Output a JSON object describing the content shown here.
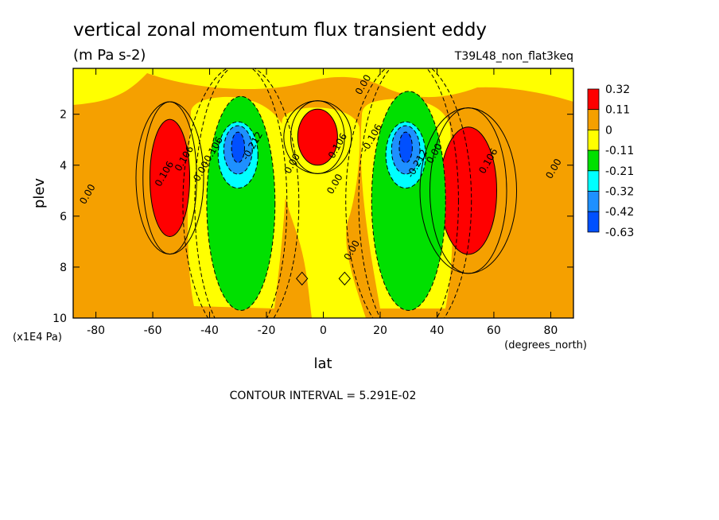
{
  "chart_data": {
    "type": "heatmap",
    "title": "vertical zonal momentum flux transient eddy",
    "units": "(m Pa s-2)",
    "dataset": "T39L48_non_flat3keq",
    "xlabel": "lat",
    "x_units": "(degrees_north)",
    "ylabel": "plev",
    "y_units": "(x1E4 Pa)",
    "x_ticks": [
      "-80",
      "-60",
      "-40",
      "-20",
      "0",
      "20",
      "40",
      "60",
      "80"
    ],
    "y_ticks": [
      "2",
      "4",
      "6",
      "8",
      "10"
    ],
    "xlim": [
      -88,
      88
    ],
    "ylim": [
      10,
      0.2
    ],
    "footer": "CONTOUR INTERVAL = 5.291E-02",
    "legend": {
      "placement": "right",
      "labels": [
        "0.32",
        "0.11",
        "0",
        "-0.11",
        "-0.21",
        "-0.32",
        "-0.42",
        "-0.63"
      ],
      "colors": [
        "#ff0000",
        "#f5a000",
        "#ffff00",
        "#00e000",
        "#00ffff",
        "#1e90ff",
        "#0050ff"
      ]
    },
    "colors": {
      "red": "#ff0000",
      "orange": "#f5a000",
      "yellow": "#ffff00",
      "green": "#00e000",
      "cyan": "#00ffff",
      "midblue": "#1e90ff",
      "blue": "#0050ff"
    },
    "features": [
      {
        "kind": "max",
        "fill": "red",
        "lat": -54,
        "plev": 4.5,
        "w": 7,
        "h": 2.3
      },
      {
        "kind": "max",
        "fill": "red",
        "lat": -2,
        "plev": 2.9,
        "w": 7,
        "h": 1.1
      },
      {
        "kind": "max",
        "fill": "red",
        "lat": 51,
        "plev": 5.0,
        "w": 10,
        "h": 2.5
      },
      {
        "kind": "min",
        "fill": "green",
        "lat": -29,
        "plev": 5.5,
        "w": 12,
        "h": 4.2
      },
      {
        "kind": "min",
        "fill": "cyan",
        "lat": -30,
        "plev": 3.6,
        "w": 7,
        "h": 1.3
      },
      {
        "kind": "min",
        "fill": "midblue",
        "lat": -30,
        "plev": 3.4,
        "w": 5,
        "h": 0.95
      },
      {
        "kind": "min",
        "fill": "blue",
        "lat": -30,
        "plev": 3.3,
        "w": 2.3,
        "h": 0.6
      },
      {
        "kind": "min",
        "fill": "green",
        "lat": 30,
        "plev": 5.4,
        "w": 13,
        "h": 4.3
      },
      {
        "kind": "min",
        "fill": "cyan",
        "lat": 29,
        "plev": 3.6,
        "w": 7,
        "h": 1.3
      },
      {
        "kind": "min",
        "fill": "midblue",
        "lat": 29,
        "plev": 3.4,
        "w": 5,
        "h": 0.95
      },
      {
        "kind": "min",
        "fill": "blue",
        "lat": 29,
        "plev": 3.3,
        "w": 2.3,
        "h": 0.6
      }
    ],
    "contour_labels": [
      {
        "text": "0.00",
        "lat": 15,
        "plev": 0.9
      },
      {
        "text": "0.106",
        "lat": -48,
        "plev": 3.8
      },
      {
        "text": "0.106",
        "lat": -55,
        "plev": 4.4
      },
      {
        "text": "0.00",
        "lat": -82,
        "plev": 5.2
      },
      {
        "text": "0.00",
        "lat": -42,
        "plev": 4.3
      },
      {
        "text": "-0.106",
        "lat": -38,
        "plev": 3.5
      },
      {
        "text": "-0.212",
        "lat": -24,
        "plev": 3.3
      },
      {
        "text": "0.00",
        "lat": -10,
        "plev": 4.0
      },
      {
        "text": "0.106",
        "lat": 6,
        "plev": 3.3
      },
      {
        "text": "0.00",
        "lat": 5,
        "plev": 4.8
      },
      {
        "text": "-0.106",
        "lat": 18,
        "plev": 3.0
      },
      {
        "text": "-0.212",
        "lat": 34,
        "plev": 4.0
      },
      {
        "text": "0.00",
        "lat": 40,
        "plev": 3.6
      },
      {
        "text": "0.106",
        "lat": 59,
        "plev": 3.9
      },
      {
        "text": "0.00",
        "lat": 82,
        "plev": 4.2
      },
      {
        "text": "0.00",
        "lat": 11,
        "plev": 7.4
      }
    ]
  }
}
